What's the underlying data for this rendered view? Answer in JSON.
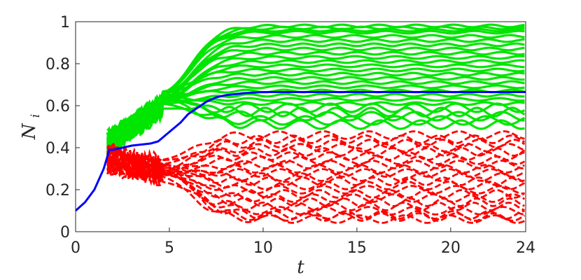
{
  "chart_data": {
    "type": "line",
    "title": "",
    "xlabel": "t",
    "ylabel": "N",
    "ylabel_subscript": "i",
    "xlim": [
      0,
      24
    ],
    "ylim": [
      0,
      1
    ],
    "xticks": [
      "0",
      "5",
      "10",
      "15",
      "20",
      "24"
    ],
    "yticks": [
      "0",
      "0.2",
      "0.4",
      "0.6",
      "0.8",
      "1"
    ],
    "grid": false,
    "legend": "none",
    "colors": {
      "green_series": "#00e600",
      "red_series": "#ff0000",
      "mean_series": "#0000ff"
    },
    "series_groups": [
      {
        "style": "solid",
        "color": "#00e600",
        "description_values": "final levels of upper curves",
        "final_values": [
          0.98,
          0.97,
          0.96,
          0.95,
          0.93,
          0.91,
          0.89,
          0.87,
          0.85,
          0.83,
          0.81,
          0.79,
          0.77,
          0.75,
          0.73,
          0.71,
          0.69,
          0.67,
          0.65,
          0.63,
          0.61,
          0.59,
          0.57,
          0.55,
          0.53,
          0.51
        ]
      },
      {
        "style": "dashed",
        "color": "#ff0000",
        "final_values": [
          0.46,
          0.44,
          0.42,
          0.4,
          0.38,
          0.36,
          0.34,
          0.32,
          0.3,
          0.28,
          0.26,
          0.24,
          0.22,
          0.2,
          0.18,
          0.16,
          0.14,
          0.12,
          0.1,
          0.08,
          0.07,
          0.06
        ]
      }
    ],
    "mean_series": {
      "color": "#0000ff",
      "x": [
        0,
        0.5,
        1,
        1.5,
        1.8,
        2,
        2.5,
        3,
        3.5,
        4,
        4.4,
        4.8,
        5.2,
        5.6,
        6,
        6.5,
        7,
        7.5,
        8,
        8.5,
        9,
        10,
        12,
        15,
        18,
        21,
        24
      ],
      "y": [
        0.1,
        0.14,
        0.2,
        0.3,
        0.39,
        0.39,
        0.4,
        0.41,
        0.415,
        0.42,
        0.43,
        0.46,
        0.49,
        0.52,
        0.56,
        0.59,
        0.62,
        0.64,
        0.65,
        0.655,
        0.66,
        0.665,
        0.665,
        0.665,
        0.665,
        0.665,
        0.665
      ]
    }
  }
}
